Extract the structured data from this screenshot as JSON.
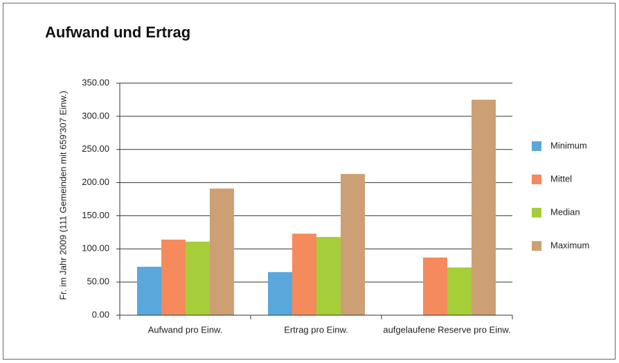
{
  "chart_data": {
    "type": "bar",
    "title": "Aufwand und Ertrag",
    "y_label": "Fr. im Jahr 2009 (111 Gemeinden mit  659'307 Einw.)",
    "categories": [
      "Aufwand pro Einw.",
      "Ertrag pro Einw.",
      "aufgelaufene Reserve pro Einw."
    ],
    "series": [
      {
        "name": "Minimum",
        "color": "#5aa7dc",
        "values": [
          73,
          65,
          0
        ]
      },
      {
        "name": "Mittel",
        "color": "#f58a5c",
        "values": [
          114,
          123,
          87
        ]
      },
      {
        "name": "Median",
        "color": "#a6ce39",
        "values": [
          111,
          118,
          72
        ]
      },
      {
        "name": "Maximum",
        "color": "#cca074",
        "values": [
          191,
          213,
          325
        ]
      }
    ],
    "ylim": [
      0,
      350
    ],
    "yticks": [
      {
        "value": 0,
        "label": "0.00"
      },
      {
        "value": 50,
        "label": "50.00"
      },
      {
        "value": 100,
        "label": "100.00"
      },
      {
        "value": 150,
        "label": "150.00"
      },
      {
        "value": 200,
        "label": "200.00"
      },
      {
        "value": 250,
        "label": "250.00"
      },
      {
        "value": 300,
        "label": "300.00"
      },
      {
        "value": 350,
        "label": "350.00"
      }
    ],
    "grid": true,
    "legend": "right"
  }
}
